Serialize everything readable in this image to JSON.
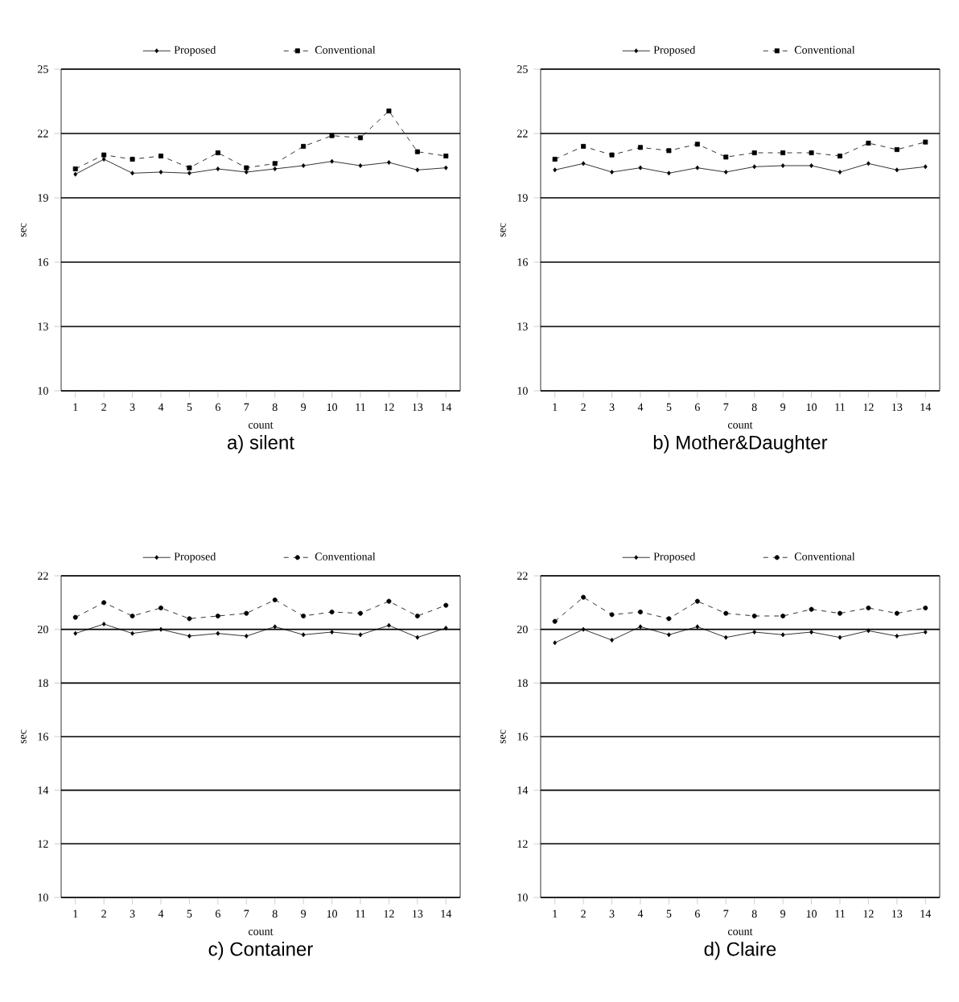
{
  "chart_data": [
    {
      "type": "line",
      "title": "a)  silent",
      "xlabel": "count",
      "ylabel": "sec",
      "categories": [
        "1",
        "2",
        "3",
        "4",
        "5",
        "6",
        "7",
        "8",
        "9",
        "10",
        "11",
        "12",
        "13",
        "14"
      ],
      "ylim": [
        10,
        25
      ],
      "yticks": [
        10,
        13,
        16,
        19,
        22,
        25
      ],
      "grid": "y",
      "legend": "top",
      "series": [
        {
          "name": "Proposed",
          "color": "#000000",
          "marker": "diamond",
          "line_style": "solid",
          "values": [
            20.1,
            20.8,
            20.15,
            20.2,
            20.15,
            20.35,
            20.2,
            20.35,
            20.5,
            20.7,
            20.5,
            20.65,
            20.3,
            20.4
          ]
        },
        {
          "name": "Conventional",
          "color": "#000000",
          "marker": "square",
          "line_style": "dashed",
          "values": [
            20.35,
            21.0,
            20.8,
            20.95,
            20.4,
            21.1,
            20.4,
            20.6,
            21.4,
            21.9,
            21.8,
            23.05,
            21.15,
            20.95
          ]
        }
      ]
    },
    {
      "type": "line",
      "title": "b)  Mother&Daughter",
      "xlabel": "count",
      "ylabel": "sec",
      "categories": [
        "1",
        "2",
        "3",
        "4",
        "5",
        "6",
        "7",
        "8",
        "9",
        "10",
        "11",
        "12",
        "13",
        "14"
      ],
      "ylim": [
        10,
        25
      ],
      "yticks": [
        10,
        13,
        16,
        19,
        22,
        25
      ],
      "grid": "y",
      "legend": "top",
      "series": [
        {
          "name": "Proposed",
          "color": "#000000",
          "marker": "diamond",
          "line_style": "solid",
          "values": [
            20.3,
            20.6,
            20.2,
            20.4,
            20.15,
            20.4,
            20.2,
            20.45,
            20.5,
            20.5,
            20.2,
            20.6,
            20.3,
            20.45
          ]
        },
        {
          "name": "Conventional",
          "color": "#000000",
          "marker": "square",
          "line_style": "dashed",
          "values": [
            20.8,
            21.4,
            21.0,
            21.35,
            21.2,
            21.5,
            20.9,
            21.1,
            21.1,
            21.1,
            20.95,
            21.55,
            21.25,
            21.6
          ]
        }
      ]
    },
    {
      "type": "line",
      "title": "c)  Container",
      "xlabel": "count",
      "ylabel": "sec",
      "categories": [
        "1",
        "2",
        "3",
        "4",
        "5",
        "6",
        "7",
        "8",
        "9",
        "10",
        "11",
        "12",
        "13",
        "14"
      ],
      "ylim": [
        10,
        22
      ],
      "yticks": [
        10,
        12,
        14,
        16,
        18,
        20,
        22
      ],
      "grid": "y",
      "legend": "top",
      "series": [
        {
          "name": "Proposed",
          "color": "#000000",
          "marker": "diamond",
          "line_style": "solid",
          "values": [
            19.85,
            20.2,
            19.85,
            20.0,
            19.75,
            19.85,
            19.75,
            20.1,
            19.8,
            19.9,
            19.8,
            20.15,
            19.7,
            20.05
          ]
        },
        {
          "name": "Conventional",
          "color": "#000000",
          "marker": "circle",
          "line_style": "dashed",
          "values": [
            20.45,
            21.0,
            20.5,
            20.8,
            20.4,
            20.5,
            20.6,
            21.1,
            20.5,
            20.65,
            20.6,
            21.05,
            20.5,
            20.9
          ]
        }
      ]
    },
    {
      "type": "line",
      "title": "d)  Claire",
      "xlabel": "count",
      "ylabel": "sec",
      "categories": [
        "1",
        "2",
        "3",
        "4",
        "5",
        "6",
        "7",
        "8",
        "9",
        "10",
        "11",
        "12",
        "13",
        "14"
      ],
      "ylim": [
        10,
        22
      ],
      "yticks": [
        10,
        12,
        14,
        16,
        18,
        20,
        22
      ],
      "grid": "y",
      "legend": "top",
      "series": [
        {
          "name": "Proposed",
          "color": "#000000",
          "marker": "diamond",
          "line_style": "solid",
          "values": [
            19.5,
            20.0,
            19.6,
            20.1,
            19.8,
            20.1,
            19.7,
            19.9,
            19.8,
            19.9,
            19.7,
            19.95,
            19.75,
            19.9
          ]
        },
        {
          "name": "Conventional",
          "color": "#000000",
          "marker": "circle",
          "line_style": "dashed",
          "values": [
            20.3,
            21.2,
            20.55,
            20.65,
            20.4,
            21.05,
            20.6,
            20.5,
            20.5,
            20.75,
            20.6,
            20.8,
            20.6,
            20.8
          ]
        }
      ]
    }
  ]
}
